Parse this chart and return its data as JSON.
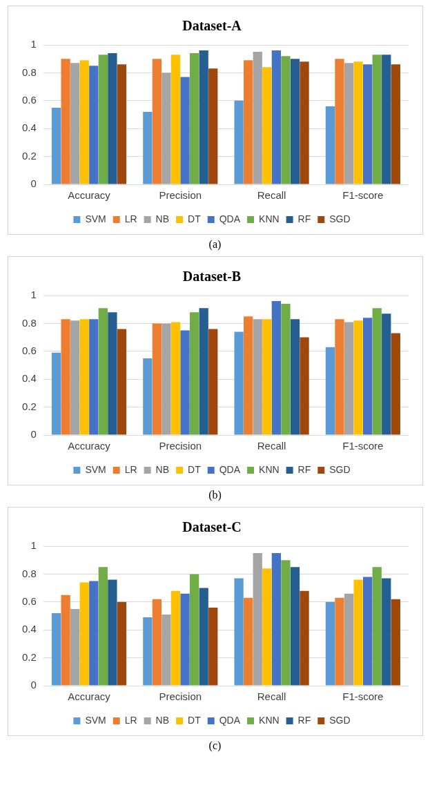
{
  "chart_data": [
    {
      "type": "bar",
      "title": "Dataset-A",
      "categories": [
        "Accuracy",
        "Precision",
        "Recall",
        "F1-score"
      ],
      "ylim": [
        0,
        1
      ],
      "yticks": [
        0,
        0.2,
        0.4,
        0.6,
        0.8,
        1
      ],
      "grid": "y",
      "legend": "bottom",
      "annotations": [
        "(a)"
      ],
      "series": [
        {
          "name": "SVM",
          "color": "#5b9bd5",
          "values": [
            0.55,
            0.52,
            0.6,
            0.56
          ]
        },
        {
          "name": "LR",
          "color": "#ed7d31",
          "values": [
            0.9,
            0.9,
            0.89,
            0.9
          ]
        },
        {
          "name": "NB",
          "color": "#a5a5a5",
          "values": [
            0.87,
            0.8,
            0.95,
            0.87
          ]
        },
        {
          "name": "DT",
          "color": "#ffc000",
          "values": [
            0.89,
            0.93,
            0.84,
            0.88
          ]
        },
        {
          "name": "QDA",
          "color": "#4472c4",
          "values": [
            0.85,
            0.77,
            0.96,
            0.86
          ]
        },
        {
          "name": "KNN",
          "color": "#70ad47",
          "values": [
            0.93,
            0.94,
            0.92,
            0.93
          ]
        },
        {
          "name": "RF",
          "color": "#255e91",
          "values": [
            0.94,
            0.96,
            0.9,
            0.93
          ]
        },
        {
          "name": "SGD",
          "color": "#9e480e",
          "values": [
            0.86,
            0.83,
            0.88,
            0.86
          ]
        }
      ]
    },
    {
      "type": "bar",
      "title": "Dataset-B",
      "categories": [
        "Accuracy",
        "Precision",
        "Recall",
        "F1-score"
      ],
      "ylim": [
        0,
        1
      ],
      "yticks": [
        0,
        0.2,
        0.4,
        0.6,
        0.8,
        1
      ],
      "grid": "y",
      "legend": "bottom",
      "annotations": [
        "(b)"
      ],
      "series": [
        {
          "name": "SVM",
          "color": "#5b9bd5",
          "values": [
            0.59,
            0.55,
            0.74,
            0.63
          ]
        },
        {
          "name": "LR",
          "color": "#ed7d31",
          "values": [
            0.83,
            0.8,
            0.85,
            0.83
          ]
        },
        {
          "name": "NB",
          "color": "#a5a5a5",
          "values": [
            0.82,
            0.8,
            0.83,
            0.81
          ]
        },
        {
          "name": "DT",
          "color": "#ffc000",
          "values": [
            0.83,
            0.81,
            0.83,
            0.82
          ]
        },
        {
          "name": "QDA",
          "color": "#4472c4",
          "values": [
            0.83,
            0.75,
            0.96,
            0.84
          ]
        },
        {
          "name": "KNN",
          "color": "#70ad47",
          "values": [
            0.91,
            0.88,
            0.94,
            0.91
          ]
        },
        {
          "name": "RF",
          "color": "#255e91",
          "values": [
            0.88,
            0.91,
            0.83,
            0.87
          ]
        },
        {
          "name": "SGD",
          "color": "#9e480e",
          "values": [
            0.76,
            0.76,
            0.7,
            0.73
          ]
        }
      ]
    },
    {
      "type": "bar",
      "title": "Dataset-C",
      "categories": [
        "Accuracy",
        "Precision",
        "Recall",
        "F1-score"
      ],
      "ylim": [
        0,
        1
      ],
      "yticks": [
        0,
        0.2,
        0.4,
        0.6,
        0.8,
        1
      ],
      "grid": "y",
      "legend": "bottom",
      "annotations": [
        "(c)"
      ],
      "series": [
        {
          "name": "SVM",
          "color": "#5b9bd5",
          "values": [
            0.52,
            0.49,
            0.77,
            0.6
          ]
        },
        {
          "name": "LR",
          "color": "#ed7d31",
          "values": [
            0.65,
            0.62,
            0.63,
            0.63
          ]
        },
        {
          "name": "NB",
          "color": "#a5a5a5",
          "values": [
            0.55,
            0.51,
            0.95,
            0.66
          ]
        },
        {
          "name": "DT",
          "color": "#ffc000",
          "values": [
            0.74,
            0.68,
            0.84,
            0.76
          ]
        },
        {
          "name": "QDA",
          "color": "#4472c4",
          "values": [
            0.75,
            0.66,
            0.95,
            0.78
          ]
        },
        {
          "name": "KNN",
          "color": "#70ad47",
          "values": [
            0.85,
            0.8,
            0.9,
            0.85
          ]
        },
        {
          "name": "RF",
          "color": "#255e91",
          "values": [
            0.76,
            0.7,
            0.85,
            0.77
          ]
        },
        {
          "name": "SGD",
          "color": "#9e480e",
          "values": [
            0.6,
            0.56,
            0.68,
            0.62
          ]
        }
      ]
    }
  ]
}
